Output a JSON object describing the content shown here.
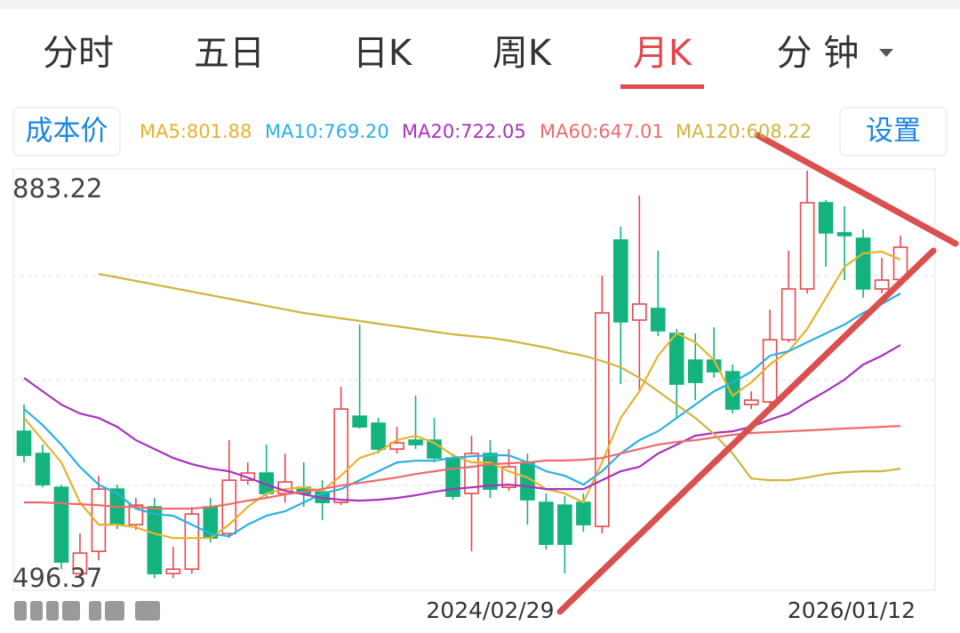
{
  "tabs": {
    "items": [
      "分时",
      "五日",
      "日K",
      "周K",
      "月K",
      "分 钟"
    ],
    "active": 4
  },
  "buttons": {
    "cost": "成本价",
    "settings": "设置"
  },
  "chart_data": {
    "type": "candlestick",
    "categories": [
      null,
      null,
      null,
      null,
      null,
      null,
      null,
      null,
      null,
      null,
      null,
      null,
      null,
      null,
      null,
      null,
      null,
      null,
      null,
      null,
      null,
      null,
      null,
      null,
      null,
      "2024/02/29",
      null,
      null,
      null,
      null,
      null,
      null,
      null,
      null,
      null,
      null,
      null,
      null,
      null,
      null,
      null,
      null,
      null,
      null,
      null,
      null,
      null,
      "2026/01/12"
    ],
    "open": [
      643.0,
      622.5,
      591.3,
      511.8,
      532.3,
      589.7,
      556.9,
      573.3,
      511.8,
      515.9,
      573.3,
      548.7,
      597.9,
      604.5,
      585.6,
      591.3,
      587.2,
      577.4,
      656.9,
      650.4,
      626.6,
      634.8,
      634.8,
      618.4,
      585.6,
      622.5,
      591.3,
      614.3,
      577.4,
      574.9,
      577.4,
      555.3,
      819.3,
      745.5,
      756.2,
      733.2,
      708.6,
      708.6,
      697.9,
      667.6,
      670.1,
      727.4,
      774.2,
      853.7,
      825.9,
      820.9,
      774.2,
      782.9
    ],
    "high": [
      667.6,
      630.7,
      593.8,
      548.7,
      602.0,
      593.8,
      581.5,
      581.5,
      536.4,
      573.3,
      581.5,
      634.8,
      614.3,
      630.7,
      622.5,
      614.3,
      597.9,
      684.0,
      741.4,
      655.3,
      647.1,
      675.8,
      655.3,
      622.5,
      638.9,
      634.8,
      626.6,
      622.5,
      585.6,
      583.1,
      585.6,
      786.5,
      831.6,
      860.3,
      809.5,
      737.3,
      733.2,
      738.9,
      704.5,
      679.9,
      755.3,
      809.5,
      883.22,
      856.2,
      850.5,
      829.1,
      802.9,
      823.4
    ],
    "low": [
      614.3,
      591.3,
      515.9,
      507.7,
      524.1,
      552.8,
      552.0,
      507.7,
      507.7,
      511.8,
      540.5,
      544.6,
      593.8,
      581.5,
      577.4,
      573.3,
      561.0,
      574.9,
      645.5,
      622.5,
      622.5,
      626.6,
      614.3,
      579.9,
      532.3,
      581.5,
      588.1,
      556.9,
      533.9,
      511.8,
      550.3,
      548.7,
      686.5,
      679.9,
      730.7,
      655.3,
      671.7,
      692.2,
      659.4,
      663.5,
      667.6,
      725.0,
      770.1,
      794.7,
      782.4,
      766.0,
      770.1,
      782.9
    ],
    "close": [
      620.9,
      593.8,
      522.5,
      530.7,
      589.7,
      556.9,
      574.9,
      511.8,
      515.9,
      566.7,
      544.6,
      597.9,
      604.5,
      585.6,
      596.3,
      585.6,
      577.4,
      663.5,
      647.1,
      626.6,
      632.3,
      630.7,
      618.4,
      583.1,
      622.5,
      589.7,
      610.2,
      579.9,
      538.9,
      538.9,
      556.9,
      752.1,
      743.9,
      760.3,
      735.7,
      686.5,
      688.1,
      697.9,
      663.5,
      671.7,
      727.4,
      774.2,
      853.7,
      825.9,
      823.4,
      774.2,
      782.4,
      812.7
    ],
    "up_color": "#e8474d",
    "down_color": "#12b37c",
    "ylim": [
      496.37,
      883.22
    ],
    "yticks": [
      883.22,
      496.37
    ],
    "series": [
      {
        "name": "MA5:801.88",
        "color": "#e8b22c",
        "values": [
          655.3,
          634.8,
          614.3,
          577.4,
          556.9,
          556.9,
          554.4,
          548.7,
          544.6,
          544.6,
          544.6,
          556.9,
          573.3,
          585.6,
          589.7,
          591.3,
          588.1,
          602.0,
          618.4,
          624.1,
          634.8,
          638.9,
          632.3,
          620.9,
          614.3,
          614.3,
          606.1,
          600.4,
          589.7,
          585.6,
          577.4,
          614.3,
          655.3,
          679.9,
          712.7,
          733.2,
          725.0,
          708.6,
          675.8,
          688.1,
          704.5,
          716.8,
          737.3,
          766.0,
          794.7,
          807.0,
          808.6,
          801.3
        ]
      },
      {
        "name": "MA10:769.20",
        "color": "#2ab0e6",
        "values": [
          663.5,
          648.7,
          630.7,
          610.2,
          593.8,
          585.6,
          571.7,
          566.7,
          565.1,
          556.9,
          548.7,
          546.2,
          556.9,
          565.1,
          569.2,
          577.4,
          585.6,
          589.7,
          597.9,
          606.1,
          614.3,
          615.9,
          615.9,
          618.4,
          620.0,
          620.9,
          620.9,
          614.3,
          606.1,
          602.0,
          593.8,
          606.1,
          622.5,
          634.8,
          643.0,
          655.3,
          667.6,
          679.9,
          688.1,
          697.9,
          712.7,
          716.8,
          725.0,
          733.2,
          741.4,
          752.1,
          760.3,
          770.1
        ]
      },
      {
        "name": "MA20:722.05",
        "color": "#a832bd",
        "values": [
          692.2,
          679.9,
          667.6,
          659.4,
          655.3,
          647.1,
          634.8,
          626.6,
          618.4,
          612.7,
          608.6,
          606.1,
          600.4,
          593.8,
          588.1,
          584.8,
          581.5,
          579.9,
          579.1,
          579.9,
          581.5,
          584.0,
          587.2,
          589.7,
          591.3,
          593.0,
          593.8,
          592.2,
          589.7,
          589.7,
          589.7,
          597.9,
          606.1,
          610.2,
          622.5,
          630.7,
          638.9,
          641.4,
          643.0,
          647.1,
          653.7,
          659.4,
          670.1,
          679.9,
          690.6,
          704.5,
          712.7,
          722.5
        ]
      },
      {
        "name": "MA60:647.01",
        "color": "#ef6b6b",
        "values": [
          577.4,
          577.4,
          576.6,
          575.8,
          574.9,
          573.3,
          573.3,
          571.7,
          571.7,
          571.7,
          573.3,
          575.8,
          579.1,
          581.5,
          584.8,
          587.2,
          589.7,
          593.0,
          595.4,
          597.9,
          600.4,
          603.6,
          606.1,
          608.6,
          610.2,
          612.7,
          613.5,
          614.3,
          616.0,
          616.0,
          616.8,
          618.4,
          622.5,
          626.6,
          630.7,
          633.2,
          634.8,
          637.3,
          639.7,
          641.4,
          642.2,
          643.0,
          643.8,
          644.6,
          645.5,
          646.3,
          647.1,
          647.9
        ]
      },
      {
        "name": "MA120:608.22",
        "color": "#d2b43e",
        "values": [
          null,
          null,
          null,
          null,
          788.1,
          784.9,
          781.6,
          778.3,
          775.0,
          771.7,
          768.5,
          765.2,
          761.9,
          758.6,
          755.3,
          752.1,
          749.6,
          747.1,
          744.7,
          742.2,
          739.8,
          737.3,
          734.8,
          732.4,
          730.7,
          729.1,
          726.6,
          723.4,
          720.1,
          716.0,
          712.7,
          707.8,
          702.0,
          692.2,
          679.9,
          667.6,
          655.3,
          640.5,
          622.5,
          599.5,
          597.9,
          597.9,
          600.4,
          603.6,
          605.3,
          606.1,
          606.1,
          608.6
        ]
      }
    ]
  }
}
